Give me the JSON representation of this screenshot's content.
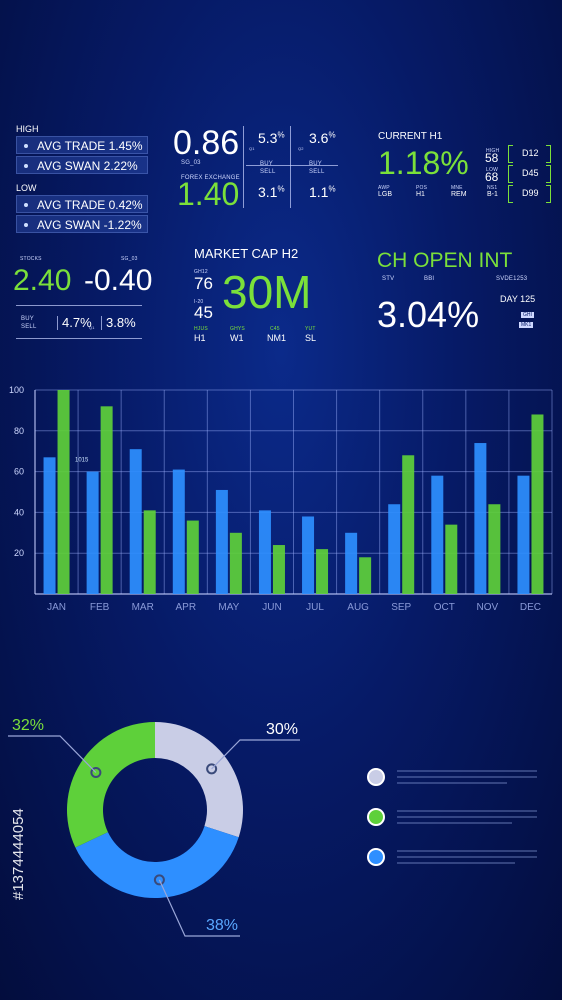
{
  "panel_high": {
    "high_label": "HIGH",
    "high_items": [
      "AVG TRADE 1.45%",
      "AVG SWAN 2.22%"
    ],
    "low_label": "LOW",
    "low_items": [
      "AVG TRADE 0.42%",
      "AVG SWAN -1.22%"
    ]
  },
  "panel_forex": {
    "value_top": "0.86",
    "code": "SG_03",
    "exchange_label": "FOREX EXCHANGE",
    "value_bottom": "1.40",
    "col1_top": "5.3",
    "col1_bottom": "3.1",
    "col2_top": "3.6",
    "col2_bottom": "1.1",
    "pct": "%",
    "buy": "BUY",
    "sell": "SELL",
    "tag_q1": "Q1",
    "tag_q2": "Q2"
  },
  "panel_current": {
    "title": "CURRENT H1",
    "value": "1.18%",
    "high_label": "HIGH",
    "high_value": "58",
    "low_label": "LOW",
    "low_value": "68",
    "codes": [
      "D12",
      "D45",
      "D99"
    ],
    "sub_labels": [
      "AWP",
      "POS",
      "MNE",
      "NS1"
    ],
    "sub_values": [
      "LGB",
      "H1",
      "REM",
      "B-1"
    ]
  },
  "panel_stocks": {
    "label": "STOCKS",
    "code": "SG_03",
    "value_left": "2.40",
    "value_right": "-0.40",
    "buy": "BUY",
    "sell": "SELL",
    "pct_a": "4.7%",
    "pct_b": "3.8%",
    "tag": "Q1"
  },
  "panel_market": {
    "title": "MARKET CAP H2",
    "side_label_1": "GH12",
    "side_value_1": "76",
    "side_label_2": "I-20",
    "side_value_2": "45",
    "big_value": "30M",
    "col_labels": [
      "HJUS",
      "GHYS",
      "C45",
      "YUT"
    ],
    "col_values": [
      "H1",
      "W1",
      "NM1",
      "SL"
    ]
  },
  "panel_open": {
    "title": "CH OPEN INT",
    "labels": [
      "STV",
      "BBI",
      "SVDE1253"
    ],
    "day": "DAY 125",
    "value": "3.04%",
    "tag1": "GHI",
    "tag2": "MK1"
  },
  "chart_data": [
    {
      "type": "bar",
      "categories": [
        "JAN",
        "FEB",
        "MAR",
        "APR",
        "MAY",
        "JUN",
        "JUL",
        "AUG",
        "SEP",
        "OCT",
        "NOV",
        "DEC"
      ],
      "series": [
        {
          "color": "#2e8fff",
          "values": [
            67,
            60,
            71,
            61,
            51,
            41,
            38,
            30,
            44,
            58,
            74,
            58
          ]
        },
        {
          "color": "#5ed03a",
          "values": [
            100,
            92,
            41,
            36,
            30,
            24,
            22,
            18,
            68,
            34,
            44,
            88
          ]
        }
      ],
      "ylim": [
        0,
        100
      ],
      "yticks": [
        0,
        20,
        40,
        60,
        80,
        100
      ],
      "ytick_labels": [
        "20",
        "40",
        "60",
        "80",
        "100"
      ],
      "grid": true,
      "annotation": "1015"
    },
    {
      "type": "pie",
      "labels": [
        "30%",
        "32%",
        "38%"
      ],
      "values": [
        30,
        32,
        38
      ],
      "colors": [
        "#c9cde6",
        "#5ed03a",
        "#2e8fff"
      ]
    }
  ],
  "watermark_id": "#1374444054"
}
